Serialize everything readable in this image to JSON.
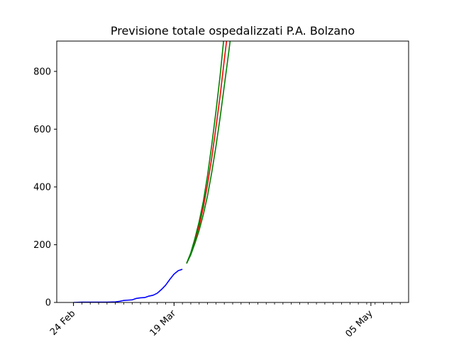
{
  "chart_data": {
    "type": "line",
    "title": "Previsione totale ospedalizzati P.A. Bolzano",
    "xlabel": "",
    "ylabel": "",
    "x_range": [
      "2020-02-20",
      "2020-05-14"
    ],
    "ylim": [
      0,
      905
    ],
    "y_ticks": [
      0,
      200,
      400,
      600,
      800
    ],
    "x_tick_labels": [
      {
        "date": "2020-02-24",
        "label": "24 Feb"
      },
      {
        "date": "2020-03-19",
        "label": "19 Mar"
      },
      {
        "date": "2020-05-05",
        "label": "05 May"
      }
    ],
    "minor_ticks": {
      "start": "2020-02-24",
      "end": "2020-05-12",
      "step_days": 2
    },
    "grid": false,
    "legend": "none",
    "series": [
      {
        "color": "#0000ff",
        "points": [
          [
            "2020-02-24",
            0
          ],
          [
            "2020-02-26",
            1
          ],
          [
            "2020-02-28",
            1
          ],
          [
            "2020-03-01",
            1
          ],
          [
            "2020-03-03",
            1
          ],
          [
            "2020-03-05",
            2
          ],
          [
            "2020-03-06",
            4
          ],
          [
            "2020-03-07",
            7
          ],
          [
            "2020-03-08",
            8
          ],
          [
            "2020-03-09",
            9
          ],
          [
            "2020-03-10",
            14
          ],
          [
            "2020-03-11",
            16
          ],
          [
            "2020-03-12",
            17
          ],
          [
            "2020-03-13",
            22
          ],
          [
            "2020-03-14",
            25
          ],
          [
            "2020-03-15",
            32
          ],
          [
            "2020-03-16",
            45
          ],
          [
            "2020-03-17",
            60
          ],
          [
            "2020-03-18",
            80
          ],
          [
            "2020-03-19",
            98
          ],
          [
            "2020-03-20",
            110
          ],
          [
            "2020-03-21",
            115
          ]
        ]
      },
      {
        "color": "#ff0000",
        "points": [
          [
            "2020-03-22",
            135
          ],
          [
            "2020-03-23",
            170
          ],
          [
            "2020-03-24",
            215
          ],
          [
            "2020-03-25",
            265
          ],
          [
            "2020-03-26",
            330
          ],
          [
            "2020-03-27",
            410
          ],
          [
            "2020-03-28",
            500
          ],
          [
            "2020-03-29",
            605
          ],
          [
            "2020-03-30",
            715
          ],
          [
            "2020-03-31",
            840
          ],
          [
            "2020-04-01",
            960
          ]
        ]
      },
      {
        "color": "#008000",
        "points": [
          [
            "2020-03-22",
            135
          ],
          [
            "2020-03-23",
            172
          ],
          [
            "2020-03-24",
            222
          ],
          [
            "2020-03-25",
            280
          ],
          [
            "2020-03-26",
            350
          ],
          [
            "2020-03-27",
            440
          ],
          [
            "2020-03-28",
            545
          ],
          [
            "2020-03-29",
            660
          ],
          [
            "2020-03-30",
            785
          ],
          [
            "2020-03-31",
            930
          ],
          [
            "2020-04-01",
            1080
          ]
        ]
      },
      {
        "color": "#008000",
        "points": [
          [
            "2020-03-22",
            135
          ],
          [
            "2020-03-23",
            165
          ],
          [
            "2020-03-24",
            205
          ],
          [
            "2020-03-25",
            250
          ],
          [
            "2020-03-26",
            305
          ],
          [
            "2020-03-27",
            370
          ],
          [
            "2020-03-28",
            450
          ],
          [
            "2020-03-29",
            540
          ],
          [
            "2020-03-30",
            640
          ],
          [
            "2020-03-31",
            750
          ],
          [
            "2020-04-01",
            860
          ],
          [
            "2020-04-02",
            975
          ]
        ]
      }
    ]
  }
}
